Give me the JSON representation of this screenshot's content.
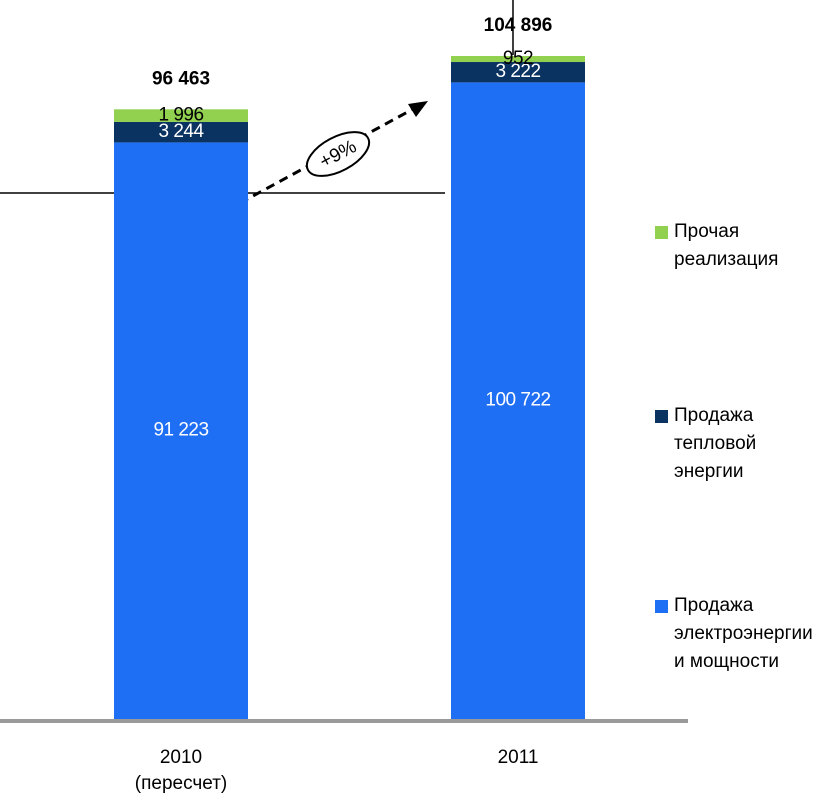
{
  "chart_data": {
    "type": "stacked_bar",
    "categories": [
      "2010 (пересчет)",
      "2011"
    ],
    "series": [
      {
        "name": "Продажа электроэнергии и мощности",
        "color": "#1f6ff5",
        "values": [
          91223,
          100722
        ],
        "value_labels": [
          "91 223",
          "100 722"
        ]
      },
      {
        "name": "Продажа тепловой энергии",
        "color": "#0b3361",
        "values": [
          3244,
          3222
        ],
        "value_labels": [
          "3 244",
          "3 222"
        ]
      },
      {
        "name": "Прочая реализация",
        "color": "#92d050",
        "values": [
          1996,
          952
        ],
        "value_labels": [
          "1 996",
          "952"
        ]
      }
    ],
    "totals": [
      96463,
      104896
    ],
    "total_labels": [
      "96 463",
      "104 896"
    ],
    "annotation": "+9%"
  }
}
